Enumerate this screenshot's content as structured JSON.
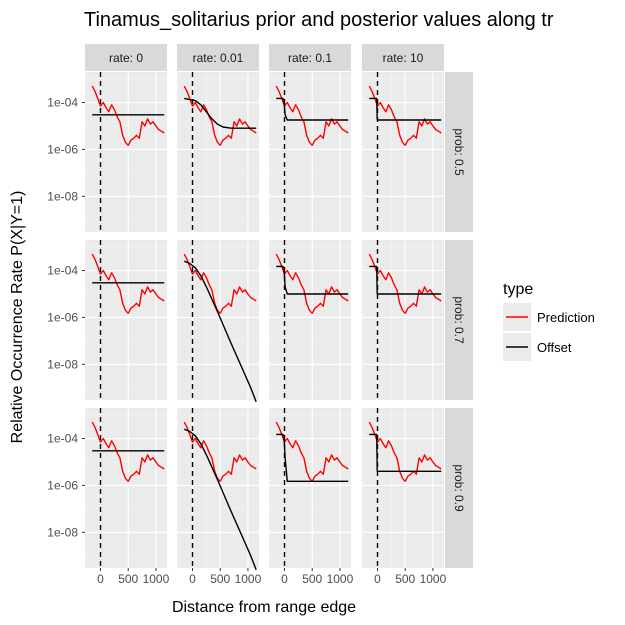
{
  "title": "Tinamus_solitarius  prior and posterior values along tr",
  "xlabel": "Distance from range edge",
  "ylabel": "Relative Occurrence Rate P(X|Y=1)",
  "legend": {
    "title": "type",
    "items": [
      {
        "label": "Prediction",
        "color": "#ff0000"
      },
      {
        "label": "Offset",
        "color": "#000000"
      }
    ]
  },
  "chart_data": {
    "type": "line",
    "facet_cols": [
      "rate: 0",
      "rate: 0.01",
      "rate: 0.1",
      "rate: 10"
    ],
    "facet_rows": [
      "prob: 0.5",
      "prob: 0.7",
      "prob: 0.9"
    ],
    "x_ticks": [
      0,
      500,
      1000
    ],
    "x_tick_labels": [
      "0",
      "500",
      "1000"
    ],
    "xlim": [
      -280,
      1200
    ],
    "y_scale": "log10",
    "y_ticks": [
      0.0001,
      1e-06,
      1e-08
    ],
    "y_tick_labels": [
      "1e-04",
      "1e-06",
      "1e-08"
    ],
    "ylim": [
      3e-10,
      0.002
    ],
    "vline_x": 0,
    "prediction_x": [
      -150,
      -100,
      -50,
      0,
      50,
      100,
      150,
      200,
      250,
      300,
      350,
      400,
      450,
      500,
      550,
      600,
      650,
      700,
      750,
      800,
      850,
      900,
      950,
      1000,
      1050,
      1100,
      1150
    ],
    "prediction_y": [
      0.0005,
      0.0003,
      0.00015,
      7e-05,
      0.0001,
      6e-05,
      4e-05,
      8e-05,
      5e-05,
      2.5e-05,
      1.5e-05,
      4e-06,
      2e-06,
      1.5e-06,
      2.5e-06,
      3e-06,
      4e-06,
      3e-06,
      1.5e-05,
      1e-05,
      2e-05,
      1.2e-05,
      1.5e-05,
      1e-05,
      7e-06,
      6e-06,
      5e-06
    ],
    "panels": [
      {
        "row": 0,
        "col": 0,
        "offset": [
          [
            -150,
            3e-05
          ],
          [
            1150,
            3e-05
          ]
        ]
      },
      {
        "row": 0,
        "col": 1,
        "offset": [
          [
            -150,
            0.00015
          ],
          [
            50,
            0.00012
          ],
          [
            150,
            8e-05
          ],
          [
            250,
            4e-05
          ],
          [
            350,
            2e-05
          ],
          [
            450,
            1.2e-05
          ],
          [
            550,
            9e-06
          ],
          [
            700,
            8e-06
          ],
          [
            1150,
            8e-06
          ]
        ]
      },
      {
        "row": 0,
        "col": 2,
        "offset": [
          [
            -150,
            0.00015
          ],
          [
            -30,
            0.00015
          ],
          [
            -10,
            0.00012
          ],
          [
            10,
            3e-05
          ],
          [
            50,
            1.8e-05
          ],
          [
            1150,
            1.8e-05
          ]
        ]
      },
      {
        "row": 0,
        "col": 3,
        "offset": [
          [
            -150,
            0.00015
          ],
          [
            -15,
            0.00015
          ],
          [
            -5,
            1.8e-05
          ],
          [
            1150,
            1.8e-05
          ]
        ]
      },
      {
        "row": 1,
        "col": 0,
        "offset": [
          [
            -150,
            3e-05
          ],
          [
            1150,
            3e-05
          ]
        ]
      },
      {
        "row": 1,
        "col": 1,
        "offset": [
          [
            -150,
            0.00025
          ],
          [
            -50,
            0.0002
          ],
          [
            50,
            0.00013
          ],
          [
            150,
            6e-05
          ],
          [
            250,
            2e-05
          ],
          [
            350,
            6e-06
          ],
          [
            450,
            1.8e-06
          ],
          [
            550,
            5e-07
          ],
          [
            650,
            1.4e-07
          ],
          [
            750,
            4e-08
          ],
          [
            850,
            1.2e-08
          ],
          [
            950,
            3.5e-09
          ],
          [
            1050,
            1e-09
          ],
          [
            1150,
            2.5e-10
          ]
        ]
      },
      {
        "row": 1,
        "col": 2,
        "offset": [
          [
            -150,
            0.00015
          ],
          [
            -30,
            0.00015
          ],
          [
            -10,
            0.00013
          ],
          [
            10,
            2e-05
          ],
          [
            50,
            1e-05
          ],
          [
            1150,
            1e-05
          ]
        ]
      },
      {
        "row": 1,
        "col": 3,
        "offset": [
          [
            -150,
            0.00015
          ],
          [
            -15,
            0.00015
          ],
          [
            -5,
            1e-05
          ],
          [
            1150,
            1e-05
          ]
        ]
      },
      {
        "row": 2,
        "col": 0,
        "offset": [
          [
            -150,
            3e-05
          ],
          [
            1150,
            3e-05
          ]
        ]
      },
      {
        "row": 2,
        "col": 1,
        "offset": [
          [
            -150,
            0.00025
          ],
          [
            -50,
            0.0002
          ],
          [
            50,
            0.00013
          ],
          [
            150,
            6e-05
          ],
          [
            250,
            2e-05
          ],
          [
            350,
            6e-06
          ],
          [
            450,
            1.8e-06
          ],
          [
            550,
            5e-07
          ],
          [
            650,
            1.4e-07
          ],
          [
            750,
            4e-08
          ],
          [
            850,
            1.2e-08
          ],
          [
            950,
            3.5e-09
          ],
          [
            1050,
            1e-09
          ],
          [
            1150,
            2.5e-10
          ]
        ]
      },
      {
        "row": 2,
        "col": 2,
        "offset": [
          [
            -150,
            0.00015
          ],
          [
            -30,
            0.00015
          ],
          [
            -10,
            0.00013
          ],
          [
            10,
            1.5e-05
          ],
          [
            50,
            1.5e-06
          ],
          [
            1150,
            1.5e-06
          ]
        ]
      },
      {
        "row": 2,
        "col": 3,
        "offset": [
          [
            -150,
            0.00015
          ],
          [
            -15,
            0.00015
          ],
          [
            -5,
            4e-06
          ],
          [
            1150,
            4e-06
          ]
        ]
      }
    ]
  }
}
